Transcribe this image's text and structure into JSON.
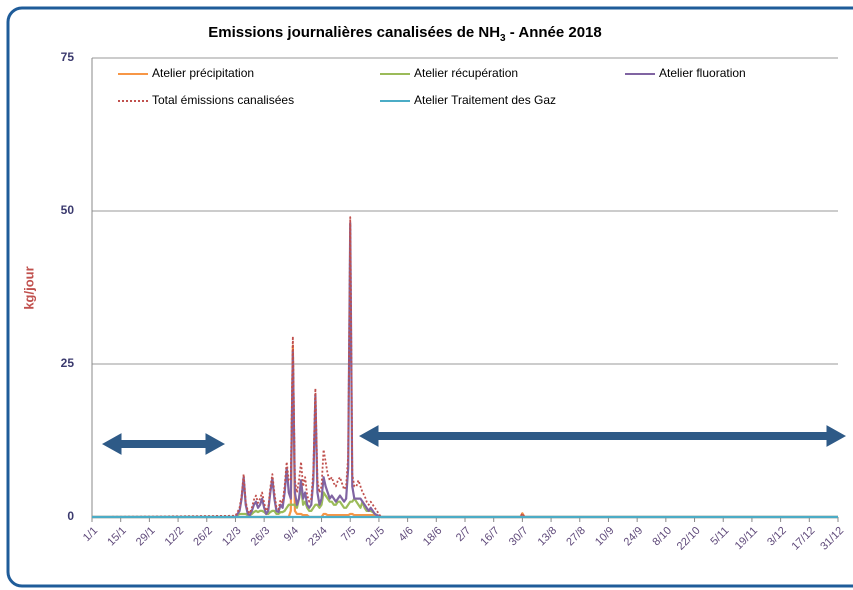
{
  "chart_data": {
    "type": "line",
    "title": [
      "Emissions journalières canalisées de NH",
      "3",
      " - Année 2018"
    ],
    "y_label": "kg/jour",
    "x": [
      "1/1",
      "12/3",
      "13/3",
      "14/3",
      "15/3",
      "16/3",
      "17/3",
      "18/3",
      "19/3",
      "20/3",
      "21/3",
      "22/3",
      "23/3",
      "24/3",
      "25/3",
      "26/3",
      "27/3",
      "28/3",
      "29/3",
      "30/3",
      "31/3",
      "1/4",
      "2/4",
      "3/4",
      "4/4",
      "5/4",
      "6/4",
      "7/4",
      "8/4",
      "9/4",
      "10/4",
      "11/4",
      "12/4",
      "13/4",
      "14/4",
      "15/4",
      "16/4",
      "17/4",
      "18/4",
      "19/4",
      "20/4",
      "21/4",
      "22/4",
      "23/4",
      "24/4",
      "25/4",
      "26/4",
      "27/4",
      "28/4",
      "29/4",
      "30/4",
      "1/5",
      "2/5",
      "3/5",
      "4/5",
      "5/5",
      "6/5",
      "7/5",
      "8/5",
      "9/5",
      "10/5",
      "11/5",
      "12/5",
      "13/5",
      "14/5",
      "15/5",
      "16/5",
      "17/5",
      "18/5",
      "19/5",
      "20/5",
      "21/5",
      "22/5",
      "29/7",
      "30/7",
      "31/7",
      "31/12"
    ],
    "series": [
      {
        "name": "Atelier précipitation",
        "color": "#f79646",
        "values": [
          0,
          0,
          0,
          0,
          0,
          0,
          0,
          0,
          0,
          0,
          0,
          0,
          0,
          0,
          0,
          0,
          0,
          0,
          0,
          0,
          0,
          0,
          0,
          0,
          0,
          0,
          0,
          0,
          1,
          28,
          1,
          0.5,
          0.5,
          0.5,
          0.3,
          0.3,
          0.3,
          0,
          0,
          0,
          0,
          0,
          0,
          0,
          0.5,
          0.5,
          0.3,
          0.3,
          0.3,
          0.3,
          0.3,
          0.3,
          0.3,
          0.3,
          0.3,
          0.3,
          0.3,
          0.5,
          0.5,
          0.3,
          0.3,
          0.3,
          0.3,
          0.3,
          0.3,
          0.3,
          0.3,
          0.3,
          0.3,
          0.3,
          0.3,
          0,
          0,
          0,
          0.6,
          0,
          0
        ]
      },
      {
        "name": "Atelier récupération",
        "color": "#9bbb59",
        "values": [
          0,
          0,
          0.3,
          0.5,
          0.5,
          0.5,
          0.5,
          0.3,
          0.3,
          0.5,
          0.8,
          1,
          0.8,
          1,
          1,
          0.8,
          0.5,
          0.5,
          0.8,
          1,
          1,
          0.5,
          0.5,
          0.8,
          0.8,
          1,
          1.5,
          2,
          2,
          2,
          2,
          1.5,
          3,
          5,
          2,
          2.5,
          1.5,
          1,
          1,
          1.5,
          2,
          2,
          1.5,
          2,
          4,
          3.5,
          3,
          2.5,
          2.5,
          2,
          2,
          2.5,
          2.5,
          2,
          1.5,
          1.5,
          2,
          2.5,
          2.5,
          3,
          2.5,
          2,
          1.5,
          2.5,
          1.5,
          1,
          1,
          1,
          0.8,
          0.5,
          0.3,
          0.2,
          0,
          0,
          0,
          0,
          0
        ]
      },
      {
        "name": "Atelier fluoration",
        "color": "#8064a2",
        "values": [
          0,
          0,
          0.5,
          1,
          3,
          6.5,
          2,
          0.5,
          0.3,
          1,
          2,
          2.5,
          1.5,
          2,
          3,
          1.5,
          0.5,
          1,
          4,
          6.3,
          3,
          1,
          0.8,
          2,
          1.5,
          4,
          8,
          4,
          3,
          27,
          4,
          2,
          3,
          6,
          3,
          4,
          2,
          1.5,
          2,
          6,
          20,
          4,
          2,
          3,
          6.5,
          5,
          4,
          3,
          3.5,
          3,
          2.5,
          3,
          3.5,
          3,
          2.5,
          3,
          8,
          48,
          5,
          3,
          3,
          3,
          3,
          2.5,
          2,
          1.5,
          1,
          1.5,
          1,
          0.5,
          0.3,
          0.2,
          0,
          0,
          0,
          0,
          0
        ]
      },
      {
        "name": "Total émissions canalisées",
        "color": "#c0504d",
        "line_style": "dotted",
        "values": [
          0,
          0.2,
          0.8,
          1.5,
          3.5,
          7,
          2.5,
          1,
          0.6,
          1.5,
          2.8,
          3.5,
          2.3,
          3,
          4,
          2.3,
          1,
          1.5,
          4.8,
          7,
          4,
          1.5,
          1.3,
          2.8,
          2.3,
          5,
          9,
          6,
          6,
          29.5,
          6,
          4,
          6,
          9,
          5,
          6.5,
          3.5,
          2.5,
          3,
          7.5,
          21,
          6,
          4,
          5,
          11,
          9,
          7,
          6,
          6.5,
          5.5,
          5,
          6,
          6.5,
          5.5,
          4.5,
          5,
          10,
          49,
          7,
          5,
          5,
          6,
          5,
          4,
          3.5,
          2.5,
          2,
          2.5,
          2,
          1.5,
          1,
          0.5,
          0,
          0,
          0.6,
          0,
          0
        ]
      },
      {
        "name": "Atelier Traitement des Gaz",
        "color": "#4bacc6",
        "values": [
          0,
          0,
          0,
          0,
          0,
          0,
          0,
          0,
          0,
          0,
          0,
          0,
          0,
          0,
          0,
          0,
          0,
          0,
          0,
          0,
          0,
          0,
          0,
          0,
          0,
          0,
          0,
          0,
          0,
          0,
          0,
          0,
          0,
          0,
          0,
          0,
          0,
          0,
          0,
          0,
          0,
          0,
          0,
          0,
          0,
          0,
          0,
          0,
          0,
          0,
          0,
          0,
          0,
          0,
          0,
          0,
          0,
          0,
          0,
          0,
          0,
          0,
          0,
          0,
          0,
          0,
          0,
          0,
          0,
          0,
          0,
          0,
          0,
          0,
          0,
          0,
          0
        ]
      }
    ],
    "xticks": [
      "1/1",
      "15/1",
      "29/1",
      "12/2",
      "26/2",
      "12/3",
      "26/3",
      "9/4",
      "23/4",
      "7/5",
      "21/5",
      "4/6",
      "18/6",
      "2/7",
      "16/7",
      "30/7",
      "13/8",
      "27/8",
      "10/9",
      "24/9",
      "8/10",
      "22/10",
      "5/11",
      "19/11",
      "3/12",
      "17/12",
      "31/12"
    ],
    "ylim": [
      0,
      75
    ],
    "yticks": [
      0,
      25,
      50,
      75
    ],
    "grid": true
  }
}
